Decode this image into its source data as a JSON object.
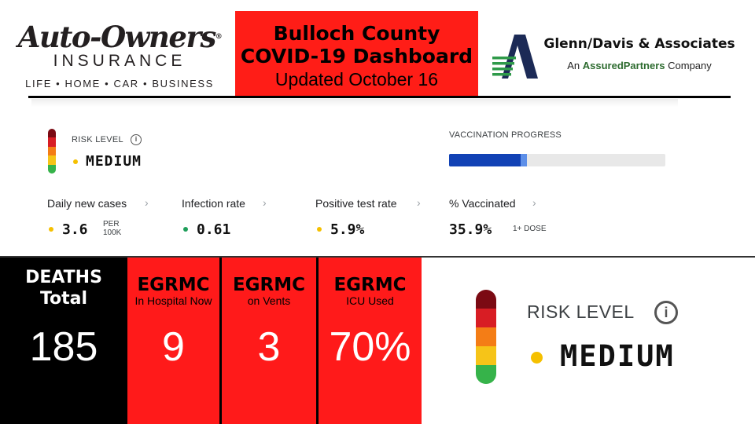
{
  "header": {
    "left_logo": {
      "name": "Auto-Owners",
      "reg": "®",
      "line2": "INSURANCE",
      "tagline": "LIFE • HOME • CAR • BUSINESS"
    },
    "title": {
      "line1": "Bulloch County",
      "line2": "COVID-19 Dashboard",
      "line3": "Updated October 16"
    },
    "right_logo": {
      "name": "Glenn/Davis & Associates",
      "sub_prefix": "An ",
      "sub_brand": "AssuredPartners",
      "sub_suffix": " Company"
    }
  },
  "dashboard": {
    "risk": {
      "label": "RISK LEVEL",
      "info_icon": "i",
      "value": "MEDIUM",
      "scale_colors": [
        "#7b0a13",
        "#d81d24",
        "#f47d16",
        "#f6c418",
        "#36b34a"
      ]
    },
    "vaccination": {
      "label": "VACCINATION PROGRESS",
      "full_fraction": 0.33,
      "partial_fraction": 0.36
    },
    "metrics": [
      {
        "label": "Daily new cases",
        "value": "3.6",
        "unit_line1": "PER",
        "unit_line2": "100K",
        "dot": "yellow"
      },
      {
        "label": "Infection rate",
        "value": "0.61",
        "dot": "green"
      },
      {
        "label": "Positive test rate",
        "value": "5.9%",
        "dot": "yellow"
      },
      {
        "label": "% Vaccinated",
        "value": "35.9%",
        "unit": "1+ DOSE"
      }
    ],
    "chevron": "›"
  },
  "tiles": [
    {
      "title_line1": "DEATHS",
      "title_line2": "Total",
      "value": "185"
    },
    {
      "head": "EGRMC",
      "sub": "In Hospital Now",
      "value": "9"
    },
    {
      "head": "EGRMC",
      "sub": "on Vents",
      "value": "3"
    },
    {
      "head": "EGRMC",
      "sub": "ICU Used",
      "value": "70%"
    }
  ],
  "colors": {
    "title_bg": "#ff1d17",
    "tile_red": "#ff1a1a",
    "vax_full": "#1142b5",
    "vax_partial": "#5d8fe8",
    "dot_yellow": "#f5c000",
    "dot_green": "#1e9e5a"
  }
}
